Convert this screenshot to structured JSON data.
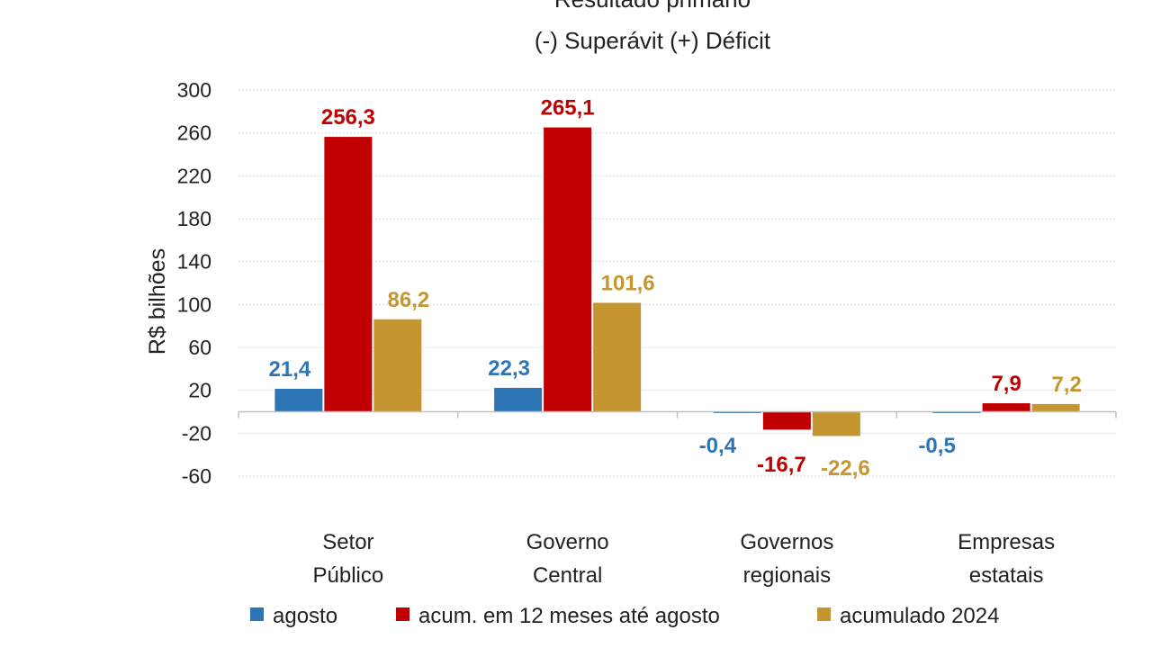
{
  "chart_data": {
    "type": "bar",
    "title": "Resultado primário",
    "subtitle": "(-) Superávit  (+) Déficit",
    "ylabel": "R$ bilhões",
    "xlabel": "",
    "ylim": [
      -60,
      300
    ],
    "yticks": [
      300,
      260,
      220,
      180,
      140,
      100,
      60,
      20,
      -20,
      -60
    ],
    "grid": true,
    "legend_position": "bottom",
    "categories": [
      [
        "Setor",
        "Público"
      ],
      [
        "Governo",
        "Central"
      ],
      [
        "Governos",
        "regionais"
      ],
      [
        "Empresas",
        "estatais"
      ]
    ],
    "series": [
      {
        "name": "agosto",
        "color": "#2e75b6",
        "values": [
          21.4,
          22.3,
          -0.4,
          -0.5
        ],
        "labels": [
          "21,4",
          "22,3",
          "-0,4",
          "-0,5"
        ]
      },
      {
        "name": "acum. em 12 meses até agosto",
        "color": "#c00000",
        "values": [
          256.3,
          265.1,
          -16.7,
          7.9
        ],
        "labels": [
          "256,3",
          "265,1",
          "-16,7",
          "7,9"
        ]
      },
      {
        "name": "acumulado 2024",
        "color": "#c59530",
        "values": [
          86.2,
          101.6,
          -22.6,
          7.2
        ],
        "labels": [
          "86,2",
          "101,6",
          "-22,6",
          "7,2"
        ]
      }
    ]
  }
}
